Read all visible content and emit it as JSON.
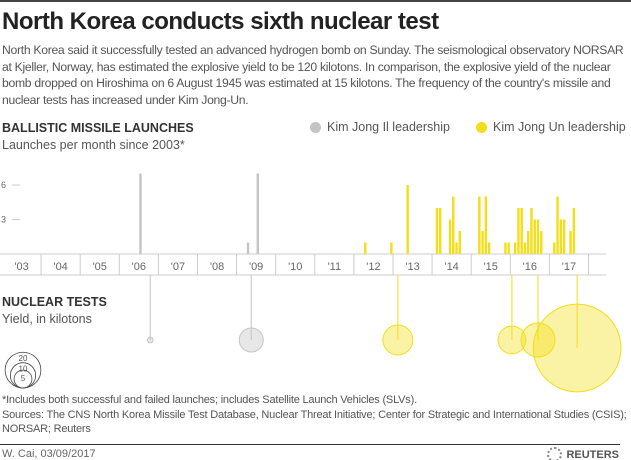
{
  "title": "North Korea conducts sixth nuclear test",
  "intro": "North Korea said it successfully tested an advanced hydrogen bomb on Sunday. The seismological observatory NORSAR at Kjeller, Norway, has estimated the explosive yield to be 120 kilotons. In comparison, the explosive yield of the nuclear bomb dropped on Hiroshima on 6 August 1945 was estimated at 15 kilotons. The frequency of the country's missile and nuclear tests has increased under Kim Jong-Un.",
  "legend": {
    "il": "Kim Jong Il leadership",
    "un": "Kim Jong Un leadership"
  },
  "colors": {
    "il": "#c4c4c4",
    "un": "#f2de1b"
  },
  "chart_data": [
    {
      "type": "bar",
      "title": "BALLISTIC MISSILE LAUNCHES",
      "subtitle": "Launches per month since 2003*",
      "x_tick_labels": [
        "'03",
        "'04",
        "'05",
        "'06",
        "'07",
        "'08",
        "'09",
        "'10",
        "'11",
        "'12",
        "'13",
        "'14",
        "'15",
        "'16",
        "'17"
      ],
      "y_ticks": [
        3,
        6
      ],
      "xlim": [
        "2003-01",
        "2017-12"
      ],
      "series": [
        {
          "name": "Kim Jong Il leadership",
          "points": [
            {
              "month": "2006-07",
              "value": 7
            },
            {
              "month": "2009-04",
              "value": 1
            },
            {
              "month": "2009-07",
              "value": 7
            }
          ]
        },
        {
          "name": "Kim Jong Un leadership",
          "points": [
            {
              "month": "2012-04",
              "value": 1
            },
            {
              "month": "2012-12",
              "value": 1
            },
            {
              "month": "2013-05",
              "value": 6
            },
            {
              "month": "2014-02",
              "value": 4
            },
            {
              "month": "2014-03",
              "value": 4
            },
            {
              "month": "2014-06",
              "value": 3
            },
            {
              "month": "2014-07",
              "value": 5
            },
            {
              "month": "2014-08",
              "value": 1
            },
            {
              "month": "2014-09",
              "value": 2
            },
            {
              "month": "2015-03",
              "value": 5
            },
            {
              "month": "2015-04",
              "value": 2
            },
            {
              "month": "2015-05",
              "value": 5
            },
            {
              "month": "2015-06",
              "value": 1
            },
            {
              "month": "2015-11",
              "value": 1
            },
            {
              "month": "2015-12",
              "value": 1
            },
            {
              "month": "2016-02",
              "value": 1
            },
            {
              "month": "2016-03",
              "value": 4
            },
            {
              "month": "2016-04",
              "value": 4
            },
            {
              "month": "2016-05",
              "value": 1
            },
            {
              "month": "2016-06",
              "value": 2
            },
            {
              "month": "2016-07",
              "value": 4
            },
            {
              "month": "2016-08",
              "value": 3
            },
            {
              "month": "2016-09",
              "value": 3
            },
            {
              "month": "2016-10",
              "value": 2
            },
            {
              "month": "2017-02",
              "value": 1
            },
            {
              "month": "2017-03",
              "value": 5
            },
            {
              "month": "2017-04",
              "value": 3
            },
            {
              "month": "2017-05",
              "value": 3
            },
            {
              "month": "2017-07",
              "value": 2
            },
            {
              "month": "2017-08",
              "value": 4
            }
          ]
        }
      ]
    },
    {
      "type": "bubble",
      "title": "NUCLEAR TESTS",
      "subtitle": "Yield, in kilotons",
      "size_legend": [
        20,
        10,
        5
      ],
      "tests": [
        {
          "month": "2006-10",
          "yield_kt": 0.5,
          "leader": "il"
        },
        {
          "month": "2009-05",
          "yield_kt": 9,
          "leader": "il"
        },
        {
          "month": "2013-02",
          "yield_kt": 14,
          "leader": "un"
        },
        {
          "month": "2016-01",
          "yield_kt": 12,
          "leader": "un"
        },
        {
          "month": "2016-09",
          "yield_kt": 18,
          "leader": "un"
        },
        {
          "month": "2017-09",
          "yield_kt": 120,
          "leader": "un"
        }
      ]
    }
  ],
  "notes": {
    "footnote": "*Includes both successful and failed launches; includes Satellite Launch Vehicles (SLVs).",
    "sources": "Sources: The CNS North Korea Missile Test Database, Nuclear Threat Initiative; Center for Strategic and International Studies (CSIS); NORSAR; Reuters"
  },
  "credit": "W. Cai, 03/09/2017",
  "brand": "REUTERS"
}
